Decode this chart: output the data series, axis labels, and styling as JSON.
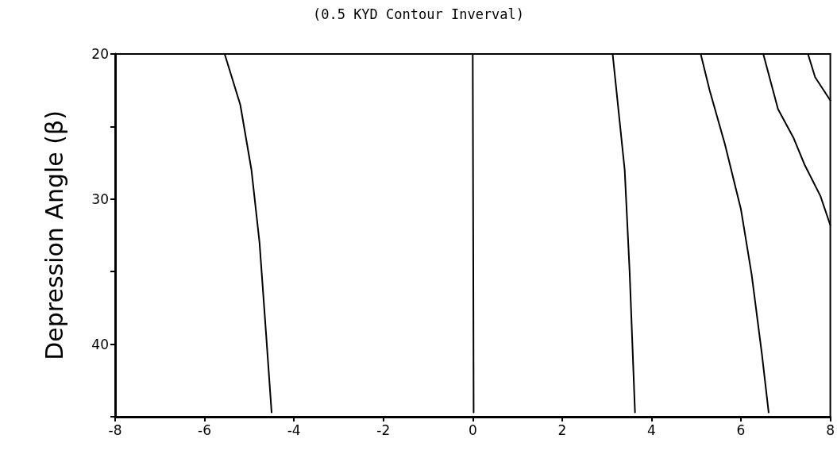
{
  "chart_data": {
    "type": "line",
    "title": "(0.5 KYD Contour Inverval)",
    "ylabel": "Depression Angle (β)",
    "xlim": [
      -8,
      8
    ],
    "xticks": [
      -8,
      -6,
      -4,
      -2,
      0,
      2,
      4,
      6,
      8
    ],
    "ylim": [
      45,
      20
    ],
    "yticks": [
      20,
      {
        "value": 25,
        "label": null
      },
      30,
      {
        "value": 35,
        "label": null
      },
      40,
      {
        "value": 45,
        "label": null
      }
    ],
    "marker": "none",
    "line_style": "solid",
    "series": [
      {
        "color": "#000000",
        "x": [
          -5.55,
          -5.2,
          -4.95,
          -4.77,
          -4.63,
          -4.5
        ],
        "values": [
          20,
          23.5,
          28,
          33,
          39,
          44.7
        ]
      },
      {
        "color": "#000000",
        "x": [
          0,
          0.01,
          0.02
        ],
        "values": [
          20,
          32,
          44.7
        ]
      },
      {
        "color": "#000000",
        "x": [
          3.13,
          3.4,
          3.51,
          3.63
        ],
        "values": [
          20,
          28,
          35,
          44.7
        ]
      },
      {
        "color": "#000000",
        "x": [
          5.1,
          5.3,
          5.64,
          6,
          6.24,
          6.47,
          6.62
        ],
        "values": [
          20,
          22.5,
          26.2,
          30.7,
          35.2,
          40.7,
          44.7
        ]
      },
      {
        "color": "#000000",
        "x": [
          6.5,
          6.83,
          7.18,
          7.42,
          7.78,
          8
        ],
        "values": [
          20,
          23.8,
          25.8,
          27.6,
          29.8,
          31.8
        ]
      },
      {
        "color": "#000000",
        "x": [
          7.5,
          7.66,
          8
        ],
        "values": [
          20,
          21.6,
          23.2
        ]
      }
    ]
  }
}
